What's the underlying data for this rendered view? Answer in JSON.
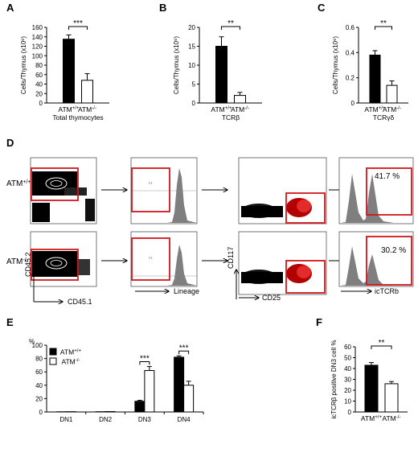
{
  "panels": {
    "A": "A",
    "B": "B",
    "C": "C",
    "D": "D",
    "E": "E",
    "F": "F"
  },
  "chart_data": [
    {
      "id": "A",
      "type": "bar",
      "categories": [
        "ATM+/+",
        "ATM-/-"
      ],
      "values": [
        135,
        48
      ],
      "errors": [
        9,
        14
      ],
      "fills": [
        "#000000",
        "#ffffff"
      ],
      "ylabel": "Cells/Thymus (x10⁶)",
      "xlabel": "Total thymocytes",
      "ylim": [
        0,
        160
      ],
      "yticks": [
        "0",
        "20",
        "40",
        "60",
        "80",
        "100",
        "120",
        "140",
        "160"
      ],
      "significance": "***"
    },
    {
      "id": "B",
      "type": "bar",
      "categories": [
        "ATM+/+",
        "ATM-/-"
      ],
      "values": [
        15,
        2
      ],
      "errors": [
        2.5,
        0.8
      ],
      "fills": [
        "#000000",
        "#ffffff"
      ],
      "ylabel": "Cells/Thymus (x10⁶)",
      "xlabel": "TCRβ",
      "ylim": [
        0,
        20
      ],
      "yticks": [
        "0",
        "5",
        "10",
        "15",
        "20"
      ],
      "significance": "**"
    },
    {
      "id": "C",
      "type": "bar",
      "categories": [
        "ATM+/+",
        "ATM-/-"
      ],
      "values": [
        0.38,
        0.14
      ],
      "errors": [
        0.035,
        0.035
      ],
      "fills": [
        "#000000",
        "#ffffff"
      ],
      "ylabel": "Cells/Thymus (x10⁶)",
      "xlabel": "TCRγδ",
      "ylim": [
        0,
        0.6
      ],
      "yticks": [
        "0",
        "0.2",
        "0.4",
        "0.6"
      ],
      "significance": "**"
    },
    {
      "id": "E",
      "type": "bar",
      "categories": [
        "DN1",
        "DN2",
        "DN3",
        "DN4"
      ],
      "series": [
        {
          "name": "ATM+/+",
          "values": [
            0.3,
            0.4,
            16,
            82
          ],
          "errors": [
            0.2,
            0.2,
            1.5,
            2
          ],
          "fill": "#000000"
        },
        {
          "name": "ATM-/-",
          "values": [
            0.4,
            0.6,
            62,
            40
          ],
          "errors": [
            0.2,
            0.2,
            6,
            6
          ],
          "fill": "#ffffff"
        }
      ],
      "ylabel": "%",
      "ylim": [
        0,
        100
      ],
      "yticks": [
        "0",
        "20",
        "40",
        "60",
        "80",
        "100"
      ],
      "legend": "top-left",
      "significance": [
        {
          "category": "DN3",
          "label": "***"
        },
        {
          "category": "DN4",
          "label": "***"
        }
      ]
    },
    {
      "id": "F",
      "type": "bar",
      "categories": [
        "ATM+/+",
        "ATM-/-"
      ],
      "values": [
        43,
        26
      ],
      "errors": [
        2.5,
        2
      ],
      "fills": [
        "#000000",
        "#ffffff"
      ],
      "ylabel": "icTCRβ positive DN3 cell %",
      "ylim": [
        0,
        60
      ],
      "yticks": [
        "0",
        "10",
        "20",
        "30",
        "40",
        "50",
        "60"
      ],
      "significance": "**"
    }
  ],
  "flow": {
    "row_labels": [
      "ATM+/+",
      "ATM-/-"
    ],
    "axis_labels": {
      "cd45_1": "CD45.1",
      "cd45_2": "CD45.2",
      "lineage": "Lineage",
      "cd117": "CD117",
      "cd25": "CD25",
      "ictcrb": "icTCRb"
    },
    "gate_text": "P1",
    "percentages": [
      "41.7 %",
      "30.2 %"
    ],
    "gate_color": "#d0161b",
    "histogram_fill": "#7f7f7f"
  }
}
